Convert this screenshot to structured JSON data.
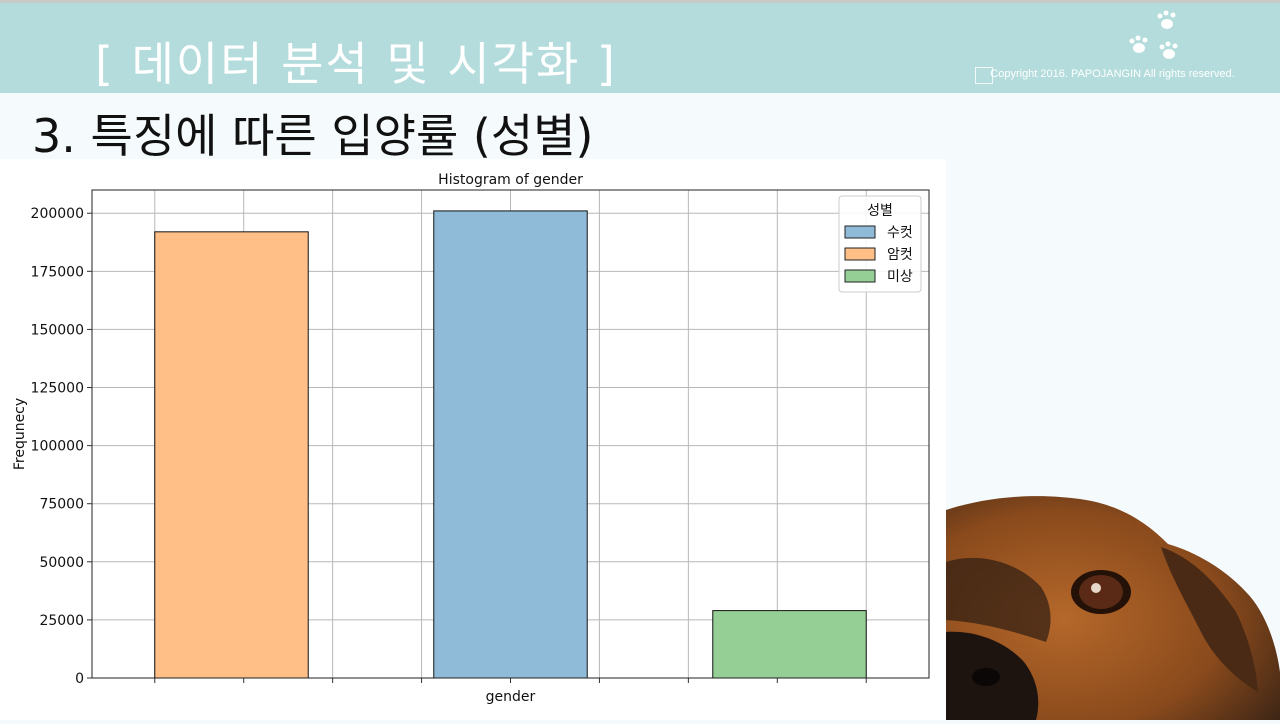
{
  "slide": {
    "title": "[  데이터 분석 및 시각화 ]",
    "subtitle": "3. 특징에 따른 입양률 (성별)",
    "copyright": "Copyright 2016. PAPOJANGIN All rights reserved."
  },
  "colors": {
    "header": "#b4dcdc",
    "male": "#8fbbd9",
    "female": "#ffbf86",
    "unknown": "#95cf95"
  },
  "icons": {
    "paws": "paw-prints-icon",
    "dog": "dog-photo"
  },
  "chart_data": {
    "type": "bar",
    "title": "Histogram of gender",
    "xlabel": "gender",
    "ylabel": "Frequnecy",
    "ylim": [
      0,
      210000
    ],
    "yticks": [
      0,
      25000,
      50000,
      75000,
      100000,
      125000,
      150000,
      175000,
      200000
    ],
    "grid": true,
    "legend": {
      "title": "성별",
      "placement": "top-right",
      "entries": [
        "수컷",
        "암컷",
        "미상"
      ]
    },
    "bars": [
      {
        "name": "암컷",
        "value": 192000,
        "color": "#ffbf86"
      },
      {
        "name": "수컷",
        "value": 201000,
        "color": "#8fbbd9"
      },
      {
        "name": "미상",
        "value": 29000,
        "color": "#95cf95"
      }
    ]
  }
}
